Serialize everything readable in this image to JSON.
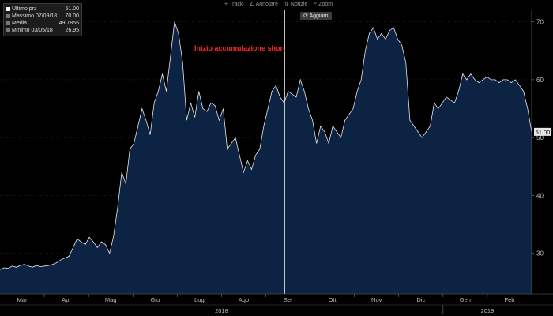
{
  "toolbar": {
    "track_label": "Track",
    "annotate_label": "Annotare",
    "news_label": "Notizie",
    "zoom_label": "Zoom",
    "refresh_label": "Aggiorn"
  },
  "legend": {
    "items": [
      {
        "label": "Ultimo prz",
        "value": "51.00",
        "color": "#ffffff"
      },
      {
        "label": "Massimo 07/09/18",
        "value": "70.00",
        "color": "#aaaaaa"
      },
      {
        "label": "Media",
        "value": "49.7855",
        "color": "#aaaaaa"
      },
      {
        "label": "Minimo 03/05/18",
        "value": "26.95",
        "color": "#aaaaaa"
      }
    ]
  },
  "annotation": {
    "text": "Inizio accumulazione short",
    "color": "#ff2a2a"
  },
  "chart_data": {
    "type": "area",
    "title": "",
    "xlabel": "",
    "ylabel": "",
    "ylim": [
      23,
      72
    ],
    "y_ticks": [
      30,
      40,
      50,
      60,
      70
    ],
    "last_price_label": "51.00",
    "month_labels": [
      "Mar",
      "Apr",
      "Mag",
      "Giu",
      "Lug",
      "Ago",
      "Set",
      "Ott",
      "Nov",
      "Dic",
      "Gen",
      "Feb"
    ],
    "year_labels": [
      "2018",
      "2019"
    ],
    "series": [
      {
        "values": [
          27.2,
          27.5,
          27.4,
          27.8,
          27.6,
          27.9,
          28.1,
          27.8,
          27.6,
          27.9,
          27.7,
          27.8,
          27.9,
          28.1,
          28.4,
          28.9,
          29.2,
          29.5,
          31,
          32.5,
          32,
          31.5,
          32.8,
          32,
          31,
          32,
          31.5,
          30,
          33,
          38,
          44,
          42,
          48,
          49,
          52,
          55,
          53,
          50.5,
          56,
          58,
          61,
          58,
          64,
          70,
          68,
          63,
          53,
          56,
          53.5,
          58,
          55,
          54.5,
          56,
          55.5,
          53,
          55,
          48,
          49,
          50,
          47,
          44,
          46,
          44.5,
          47,
          48,
          52,
          55,
          58,
          59,
          57,
          56,
          58,
          57.5,
          57,
          60,
          58,
          55,
          53,
          49,
          52,
          51,
          49,
          52,
          51,
          50,
          53,
          54,
          55,
          58,
          60,
          65,
          68,
          69,
          67,
          68,
          67,
          68.5,
          69,
          67,
          66,
          63,
          53,
          52,
          51,
          50,
          51,
          52,
          56,
          55,
          56,
          57,
          56.5,
          56,
          58,
          61,
          60,
          61,
          60,
          59.5,
          60,
          60.5,
          60,
          60,
          59.5,
          60,
          60,
          59.5,
          60,
          59,
          58,
          55,
          51
        ]
      }
    ]
  }
}
